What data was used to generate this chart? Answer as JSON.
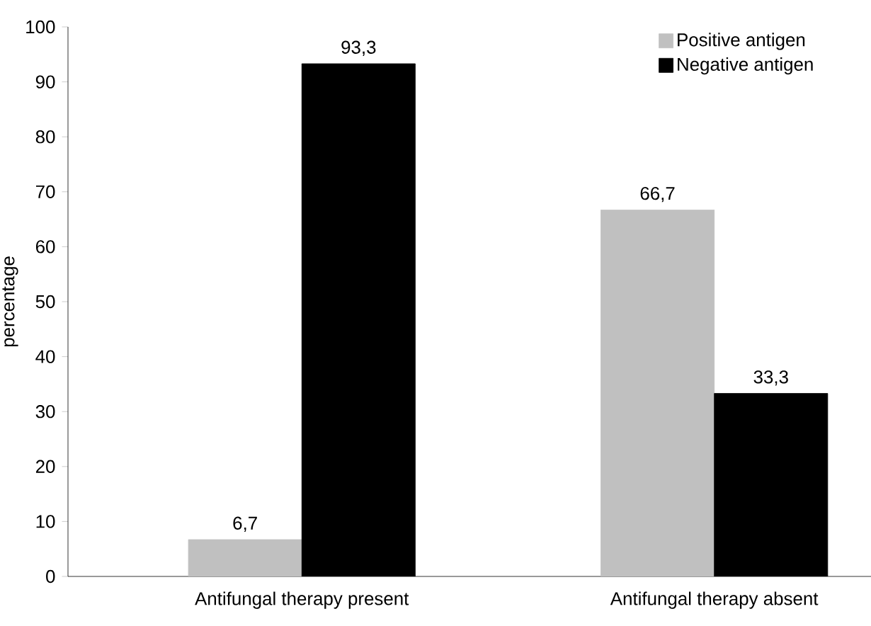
{
  "chart_data": {
    "type": "bar",
    "ylabel": "percentage",
    "categories": [
      "Antifungal therapy present",
      "Antifungal therapy absent"
    ],
    "series": [
      {
        "name": "Positive antigen",
        "color": "#c0c0c0",
        "values": [
          6.7,
          66.7
        ],
        "value_labels": [
          "6,7",
          "66,7"
        ]
      },
      {
        "name": "Negative antigen",
        "color": "#000000",
        "values": [
          93.3,
          33.3
        ],
        "value_labels": [
          "93,3",
          "33,3"
        ]
      }
    ],
    "ylim": [
      0,
      100
    ],
    "yticks": [
      0,
      10,
      20,
      30,
      40,
      50,
      60,
      70,
      80,
      90,
      100
    ],
    "grid": false,
    "legend": "top right"
  }
}
